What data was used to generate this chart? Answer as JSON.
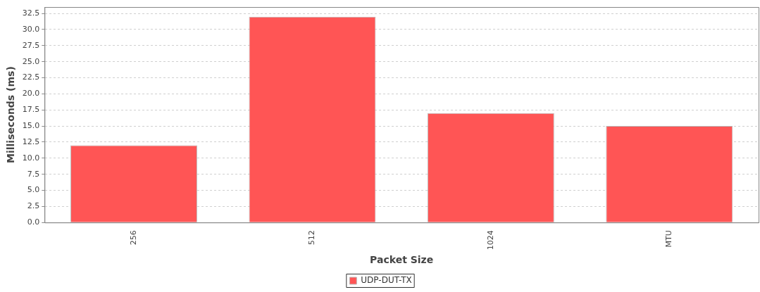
{
  "chart_data": {
    "type": "bar",
    "xlabel": "Packet Size",
    "ylabel": "Milliseconds (ms)",
    "categories": [
      "256",
      "512",
      "1024",
      "MTU"
    ],
    "series": [
      {
        "name": "UDP-DUT-TX",
        "color": "#ff5555",
        "values": [
          12,
          32,
          17,
          15
        ]
      }
    ],
    "ylim": [
      0,
      33.5
    ],
    "yticks": [
      {
        "value": 0,
        "label": "0.0"
      },
      2.5,
      {
        "value": 5,
        "label": "5.0"
      },
      7.5,
      {
        "value": 10,
        "label": "10.0"
      },
      12.5,
      {
        "value": 15,
        "label": "15.0"
      },
      17.5,
      {
        "value": 20,
        "label": "20.0"
      },
      22.5,
      {
        "value": 25,
        "label": "25.0"
      },
      27.5,
      {
        "value": 30,
        "label": "30.0"
      },
      32.5
    ],
    "grid": "y",
    "legend": "bottom"
  }
}
